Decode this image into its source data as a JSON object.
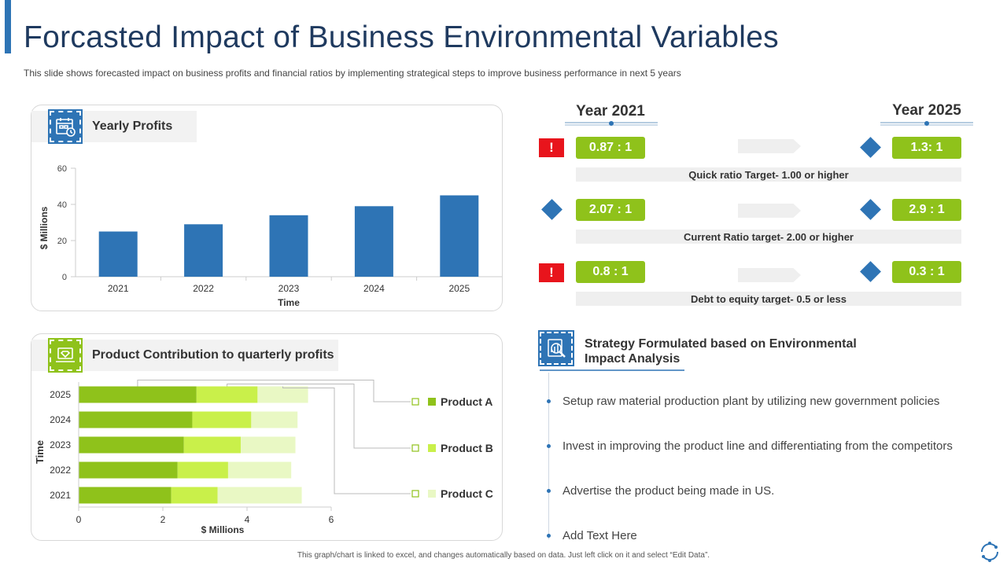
{
  "title": "Forcasted Impact of Business Environmental Variables",
  "subtitle": "This slide shows forecasted impact on business profits and financial ratios by implementing strategical steps to improve business performance in next 5 years",
  "colors": {
    "accent": "#2e74b5",
    "green": "#8fc21b",
    "lime": "#c9f04a",
    "pale": "#e9f8c4",
    "alert": "#e8141c"
  },
  "profits_panel": {
    "title": "Yearly Profits",
    "icon": "calendar-clock-icon"
  },
  "product_panel": {
    "title": "Product Contribution to quarterly profits",
    "icon": "laptop-diamond-icon"
  },
  "chart_data": [
    {
      "type": "bar",
      "title": "Yearly Profits",
      "categories": [
        "2021",
        "2022",
        "2023",
        "2024",
        "2025"
      ],
      "values": [
        25,
        29,
        34,
        39,
        45
      ],
      "xlabel": "Time",
      "ylabel": "$ Millions",
      "ylim": [
        0,
        60
      ],
      "yticks": [
        "0",
        "20",
        "40",
        "60"
      ]
    },
    {
      "type": "bar",
      "orientation": "horizontal",
      "stacked": true,
      "title": "Product Contribution to quarterly profits",
      "categories": [
        "2021",
        "2022",
        "2023",
        "2024",
        "2025"
      ],
      "series": [
        {
          "name": "Product A",
          "values": [
            2.2,
            2.35,
            2.5,
            2.7,
            2.8
          ]
        },
        {
          "name": "Product B",
          "values": [
            1.1,
            1.2,
            1.35,
            1.4,
            1.45
          ]
        },
        {
          "name": "Product C",
          "values": [
            2.0,
            1.5,
            1.3,
            1.1,
            1.2
          ]
        }
      ],
      "xlabel": "$ Millions",
      "ylabel": "Time",
      "xlim": [
        0,
        6
      ],
      "xticks": [
        "0",
        "2",
        "4",
        "6"
      ],
      "legend_position": "right"
    }
  ],
  "ratios": {
    "year_start": "Year 2021",
    "year_end": "Year 2025",
    "rows": [
      {
        "start": "0.87 : 1",
        "end": "1.3: 1",
        "target": "Quick ratio Target- 1.00 or higher",
        "status_icon": "alert-icon"
      },
      {
        "start": "2.07 : 1",
        "end": "2.9 : 1",
        "target": "Current Ratio target- 2.00 or higher",
        "status_icon": "diamond-icon"
      },
      {
        "start": "0.8 : 1",
        "end": "0.3 : 1",
        "target": "Debt to equity target- 0.5 or less",
        "status_icon": "alert-icon"
      }
    ],
    "alert_symbol": "!"
  },
  "strategy": {
    "icon": "analysis-report-icon",
    "title_line1": "Strategy Formulated based on Environmental",
    "title_line2": "Impact Analysis",
    "bullets": [
      "Setup raw material production plant by utilizing new government policies",
      "Invest in improving the product line and differentiating from the competitors",
      "Advertise the product being made in US.",
      "Add Text Here"
    ]
  },
  "footer": "This graph/chart is linked to excel, and changes automatically based on data. Just left click on it and select “Edit Data”."
}
